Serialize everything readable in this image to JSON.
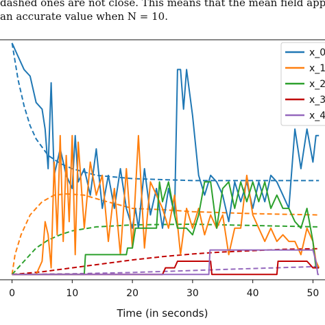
{
  "caption": {
    "line1": "dashed ones are not close. This means that the mean field approximation",
    "line2": "an accurate value when N = 10."
  },
  "chart_data": {
    "type": "line",
    "title": "",
    "xlabel": "Time (in seconds)",
    "ylabel": "",
    "xlim": [
      -2,
      52
    ],
    "ylim": [
      -0.08,
      3.55
    ],
    "xticks": [
      0,
      10,
      20,
      30,
      40,
      50
    ],
    "grid": false,
    "legend": {
      "position": "top-right",
      "entries": [
        "x_0",
        "x_1",
        "x_2",
        "x_3",
        "x_4"
      ]
    },
    "series": [
      {
        "name": "x_0",
        "color": "#1f77b4",
        "simulated": [
          [
            0,
            3.5
          ],
          [
            1,
            3.3
          ],
          [
            2,
            3.1
          ],
          [
            3,
            3.0
          ],
          [
            4,
            2.6
          ],
          [
            5,
            2.5
          ],
          [
            5.5,
            2.2
          ],
          [
            6,
            1.6
          ],
          [
            6.5,
            2.9
          ],
          [
            7,
            1.5
          ],
          [
            8,
            1.9
          ],
          [
            9,
            1.5
          ],
          [
            10,
            1.3
          ],
          [
            10.5,
            2.1
          ],
          [
            11,
            1.4
          ],
          [
            12,
            1.6
          ],
          [
            13,
            1.2
          ],
          [
            14,
            1.9
          ],
          [
            15,
            1.0
          ],
          [
            16,
            1.5
          ],
          [
            17,
            1.0
          ],
          [
            18,
            1.6
          ],
          [
            19,
            1.0
          ],
          [
            20,
            0.7
          ],
          [
            20.5,
            1.0
          ],
          [
            21,
            0.7
          ],
          [
            22,
            1.6
          ],
          [
            23,
            0.9
          ],
          [
            24,
            1.3
          ],
          [
            25,
            0.7
          ],
          [
            26,
            1.3
          ],
          [
            27,
            0.9
          ],
          [
            27.5,
            3.1
          ],
          [
            28,
            3.1
          ],
          [
            28.5,
            2.5
          ],
          [
            29,
            3.1
          ],
          [
            30,
            2.4
          ],
          [
            31,
            1.5
          ],
          [
            32,
            1.2
          ],
          [
            33,
            1.5
          ],
          [
            34,
            1.4
          ],
          [
            35,
            1.2
          ],
          [
            36,
            0.8
          ],
          [
            37,
            1.4
          ],
          [
            38,
            1.1
          ],
          [
            39,
            1.4
          ],
          [
            40,
            1.0
          ],
          [
            41,
            1.4
          ],
          [
            42,
            1.1
          ],
          [
            43,
            1.5
          ],
          [
            44,
            1.4
          ],
          [
            45,
            1.2
          ],
          [
            46,
            1.0
          ],
          [
            47,
            2.2
          ],
          [
            48,
            1.6
          ],
          [
            49,
            2.2
          ],
          [
            50,
            1.7
          ],
          [
            50.5,
            2.1
          ],
          [
            51,
            2.1
          ]
        ],
        "mean_field": [
          [
            0,
            3.5
          ],
          [
            1,
            2.95
          ],
          [
            2,
            2.55
          ],
          [
            3,
            2.25
          ],
          [
            4,
            2.05
          ],
          [
            6,
            1.8
          ],
          [
            8,
            1.68
          ],
          [
            10,
            1.6
          ],
          [
            14,
            1.5
          ],
          [
            20,
            1.45
          ],
          [
            30,
            1.42
          ],
          [
            40,
            1.42
          ],
          [
            51,
            1.42
          ]
        ]
      },
      {
        "name": "x_1",
        "color": "#ff7f0e",
        "simulated": [
          [
            0,
            0.0
          ],
          [
            1,
            0.0
          ],
          [
            2,
            0.0
          ],
          [
            3,
            0.0
          ],
          [
            4,
            0.0
          ],
          [
            5,
            0.2
          ],
          [
            5.5,
            0.8
          ],
          [
            6,
            0.6
          ],
          [
            6.5,
            0.1
          ],
          [
            7,
            1.7
          ],
          [
            7.5,
            0.6
          ],
          [
            8,
            2.1
          ],
          [
            8.5,
            0.5
          ],
          [
            9,
            1.8
          ],
          [
            9.5,
            0.8
          ],
          [
            10,
            2.1
          ],
          [
            10.5,
            0.3
          ],
          [
            11,
            2.0
          ],
          [
            12,
            0.7
          ],
          [
            13,
            1.7
          ],
          [
            14,
            1.2
          ],
          [
            15,
            1.5
          ],
          [
            16,
            0.5
          ],
          [
            17,
            1.3
          ],
          [
            18,
            0.3
          ],
          [
            19,
            1.6
          ],
          [
            20,
            0.4
          ],
          [
            21,
            2.1
          ],
          [
            22,
            0.4
          ],
          [
            23,
            1.4
          ],
          [
            24,
            1.2
          ],
          [
            25,
            1.0
          ],
          [
            26,
            0.7
          ],
          [
            27,
            1.2
          ],
          [
            28,
            0.3
          ],
          [
            29,
            1.0
          ],
          [
            30,
            0.7
          ],
          [
            31,
            1.0
          ],
          [
            32,
            0.6
          ],
          [
            33,
            0.9
          ],
          [
            34,
            0.7
          ],
          [
            35,
            0.9
          ],
          [
            36,
            0.3
          ],
          [
            37,
            0.7
          ],
          [
            38,
            0.7
          ],
          [
            39,
            1.5
          ],
          [
            40,
            0.9
          ],
          [
            41,
            0.7
          ],
          [
            42,
            0.5
          ],
          [
            43,
            0.7
          ],
          [
            44,
            0.5
          ],
          [
            45,
            0.6
          ],
          [
            46,
            0.5
          ],
          [
            47,
            0.5
          ],
          [
            48,
            0.3
          ],
          [
            49,
            0.7
          ],
          [
            50,
            0.5
          ],
          [
            50.5,
            0.2
          ],
          [
            51,
            0.1
          ]
        ],
        "mean_field": [
          [
            0,
            0.0
          ],
          [
            0.5,
            0.3
          ],
          [
            1.5,
            0.6
          ],
          [
            3,
            0.9
          ],
          [
            5,
            1.1
          ],
          [
            7,
            1.2
          ],
          [
            9,
            1.22
          ],
          [
            12,
            1.2
          ],
          [
            15,
            1.12
          ],
          [
            20,
            1.0
          ],
          [
            25,
            0.98
          ],
          [
            30,
            0.95
          ],
          [
            40,
            0.92
          ],
          [
            51,
            0.9
          ]
        ]
      },
      {
        "name": "x_2",
        "color": "#2ca02c",
        "simulated": [
          [
            0,
            0.0
          ],
          [
            12,
            0.0
          ],
          [
            12.2,
            0.3
          ],
          [
            19,
            0.3
          ],
          [
            19.2,
            0.4
          ],
          [
            20,
            0.4
          ],
          [
            20.5,
            0.7
          ],
          [
            24,
            0.7
          ],
          [
            24.5,
            1.4
          ],
          [
            25,
            1.1
          ],
          [
            26,
            1.4
          ],
          [
            27,
            0.9
          ],
          [
            27.5,
            0.7
          ],
          [
            28,
            0.7
          ],
          [
            29,
            0.7
          ],
          [
            30,
            0.6
          ],
          [
            31,
            0.9
          ],
          [
            32,
            1.4
          ],
          [
            33,
            1.4
          ],
          [
            34,
            0.7
          ],
          [
            35,
            1.3
          ],
          [
            36,
            1.4
          ],
          [
            37,
            1.0
          ],
          [
            38,
            1.4
          ],
          [
            39,
            1.1
          ],
          [
            40,
            1.4
          ],
          [
            41,
            1.1
          ],
          [
            42,
            1.4
          ],
          [
            43,
            1.0
          ],
          [
            44,
            1.2
          ],
          [
            45,
            1.0
          ],
          [
            46,
            1.0
          ],
          [
            47,
            0.8
          ],
          [
            48,
            0.7
          ],
          [
            49,
            1.0
          ],
          [
            50,
            0.5
          ],
          [
            50.5,
            0.1
          ],
          [
            51,
            0.1
          ]
        ],
        "mean_field": [
          [
            0,
            0.0
          ],
          [
            2,
            0.2
          ],
          [
            4,
            0.4
          ],
          [
            6,
            0.52
          ],
          [
            8,
            0.6
          ],
          [
            10,
            0.66
          ],
          [
            14,
            0.72
          ],
          [
            20,
            0.75
          ],
          [
            30,
            0.76
          ],
          [
            40,
            0.74
          ],
          [
            51,
            0.72
          ]
        ]
      },
      {
        "name": "x_3",
        "color": "#c00000",
        "simulated": [
          [
            0,
            0.0
          ],
          [
            25,
            0.0
          ],
          [
            25.5,
            0.1
          ],
          [
            27,
            0.1
          ],
          [
            27.5,
            0.2
          ],
          [
            33,
            0.2
          ],
          [
            33.2,
            0.0
          ],
          [
            44,
            0.0
          ],
          [
            44.2,
            0.2
          ],
          [
            49,
            0.2
          ],
          [
            50,
            0.1
          ],
          [
            51,
            0.1
          ]
        ],
        "mean_field": [
          [
            0,
            0.0
          ],
          [
            5,
            0.04
          ],
          [
            10,
            0.1
          ],
          [
            15,
            0.16
          ],
          [
            20,
            0.22
          ],
          [
            25,
            0.27
          ],
          [
            30,
            0.31
          ],
          [
            35,
            0.34
          ],
          [
            40,
            0.36
          ],
          [
            45,
            0.38
          ],
          [
            51,
            0.39
          ]
        ]
      },
      {
        "name": "x_4",
        "color": "#9467bd",
        "simulated": [
          [
            0,
            0.0
          ],
          [
            32.7,
            0.0
          ],
          [
            32.9,
            0.37
          ],
          [
            49,
            0.37
          ],
          [
            50,
            0.37
          ],
          [
            50.5,
            0.2
          ],
          [
            50.8,
            0.0
          ],
          [
            51,
            0.0
          ]
        ],
        "mean_field": [
          [
            0,
            0.0
          ],
          [
            10,
            0.01
          ],
          [
            20,
            0.03
          ],
          [
            30,
            0.06
          ],
          [
            40,
            0.09
          ],
          [
            51,
            0.12
          ]
        ]
      }
    ]
  }
}
